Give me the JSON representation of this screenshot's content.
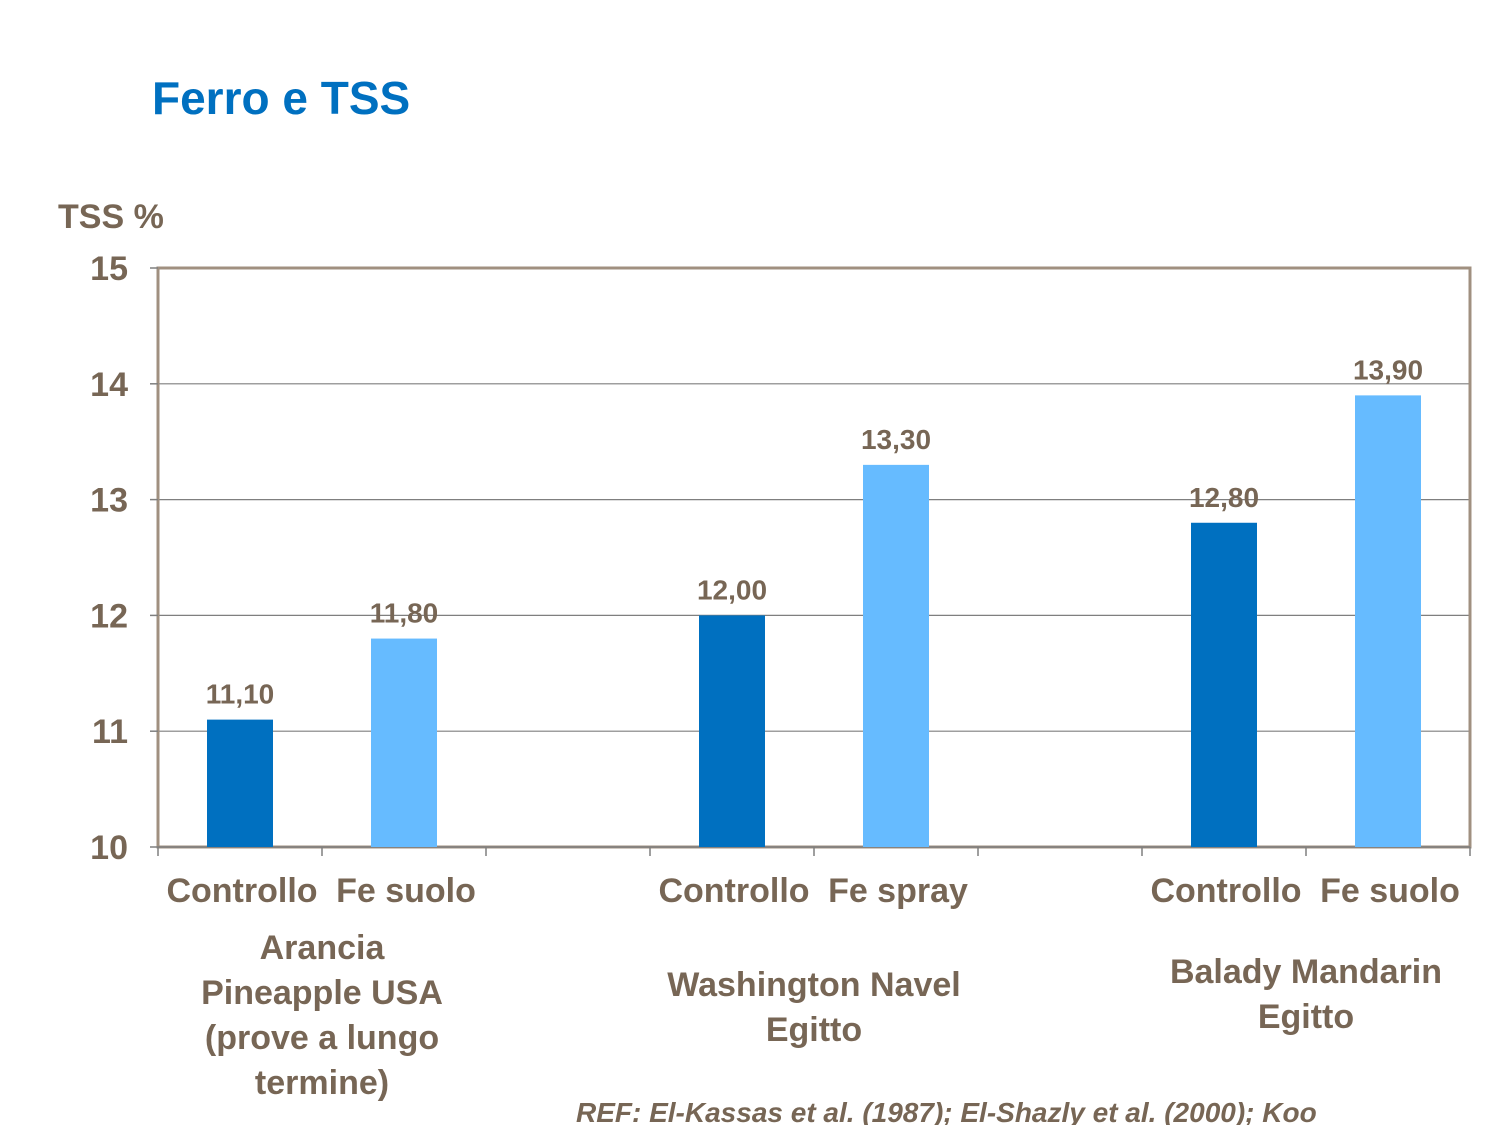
{
  "title": "Ferro e TSS",
  "colors": {
    "title": "#0070c0",
    "text": "#776655",
    "dark_bar": "#0070c0",
    "light_bar": "#66bbff",
    "grid": "#7f7f7f",
    "frame": "#a09080"
  },
  "chart_data": {
    "type": "bar",
    "ylabel": "TSS %",
    "ylim": [
      10,
      15
    ],
    "yticks": [
      10,
      11,
      12,
      13,
      14,
      15
    ],
    "grid": true,
    "bars": [
      {
        "category": "Controllo",
        "value": 11.1,
        "label": "11,10",
        "series": "controllo"
      },
      {
        "category": "Fe suolo",
        "value": 11.8,
        "label": "11,80",
        "series": "trattamento"
      },
      {
        "category": "",
        "value": null,
        "label": "",
        "series": ""
      },
      {
        "category": "Controllo",
        "value": 12.0,
        "label": "12,00",
        "series": "controllo"
      },
      {
        "category": "Fe spray",
        "value": 13.3,
        "label": "13,30",
        "series": "trattamento"
      },
      {
        "category": "",
        "value": null,
        "label": "",
        "series": ""
      },
      {
        "category": "Controllo",
        "value": 12.8,
        "label": "12,80",
        "series": "controllo"
      },
      {
        "category": "Fe suolo",
        "value": 13.9,
        "label": "13,90",
        "series": "trattamento"
      }
    ],
    "groups": [
      {
        "lines": [
          "Arancia",
          "Pineapple USA",
          "(prove a lungo",
          "termine)"
        ]
      },
      {
        "lines": [
          "Washington Navel",
          "Egitto"
        ]
      },
      {
        "lines": [
          "Balady Mandarin",
          "Egitto"
        ]
      }
    ]
  },
  "reference": "REF: El-Kassas et al. (1987); El-Shazly et al. (2000); Koo"
}
